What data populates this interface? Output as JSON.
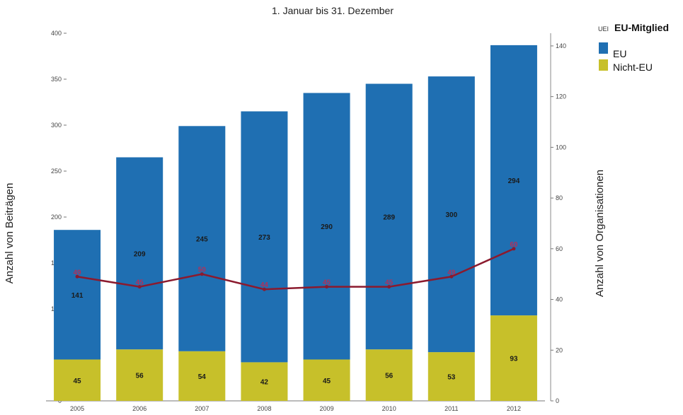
{
  "chart_data": {
    "type": "bar",
    "stacked": true,
    "subtitle": "1. Januar bis 31. Dezember",
    "ylabel_left": "Anzahl von Beiträgen",
    "ylabel_right": "Anzahl von Organisationen",
    "ylim_left": [
      0,
      400
    ],
    "ylim_right": [
      0,
      145
    ],
    "yticks_left": [
      "0",
      "50",
      "100",
      "150",
      "200",
      "250",
      "300",
      "350",
      "400"
    ],
    "yticks_right": [
      "0",
      "20",
      "40",
      "60",
      "80",
      "100",
      "120",
      "140"
    ],
    "categories": [
      "2005",
      "2006",
      "2007",
      "2008",
      "2009",
      "2010",
      "2011",
      "2012"
    ],
    "series": [
      {
        "name": "Nicht-EU",
        "color": "#c7c02a",
        "axis": "left",
        "values": [
          45,
          56,
          54,
          42,
          45,
          56,
          53,
          93
        ],
        "labels": [
          "45",
          "56",
          "54",
          "42",
          "45",
          "56",
          "53",
          "93"
        ]
      },
      {
        "name": "EU",
        "color": "#1f6fb2",
        "axis": "left",
        "values": [
          141,
          209,
          245,
          273,
          290,
          289,
          300,
          294
        ],
        "labels": [
          "141",
          "209",
          "245",
          "273",
          "290",
          "289",
          "300",
          "294"
        ]
      },
      {
        "type": "line",
        "color": "#8b1a2e",
        "axis": "right",
        "values": [
          49,
          45,
          50,
          44,
          45,
          45,
          49,
          60
        ],
        "labels": [
          "49",
          "45",
          "50",
          "44",
          "45",
          "45",
          "49",
          "60"
        ]
      }
    ],
    "legend": {
      "title": "EU-Mitglied",
      "tag": "UEI",
      "placement": "top-right",
      "entries": [
        "EU",
        "Nicht-EU"
      ]
    },
    "grid": false
  }
}
